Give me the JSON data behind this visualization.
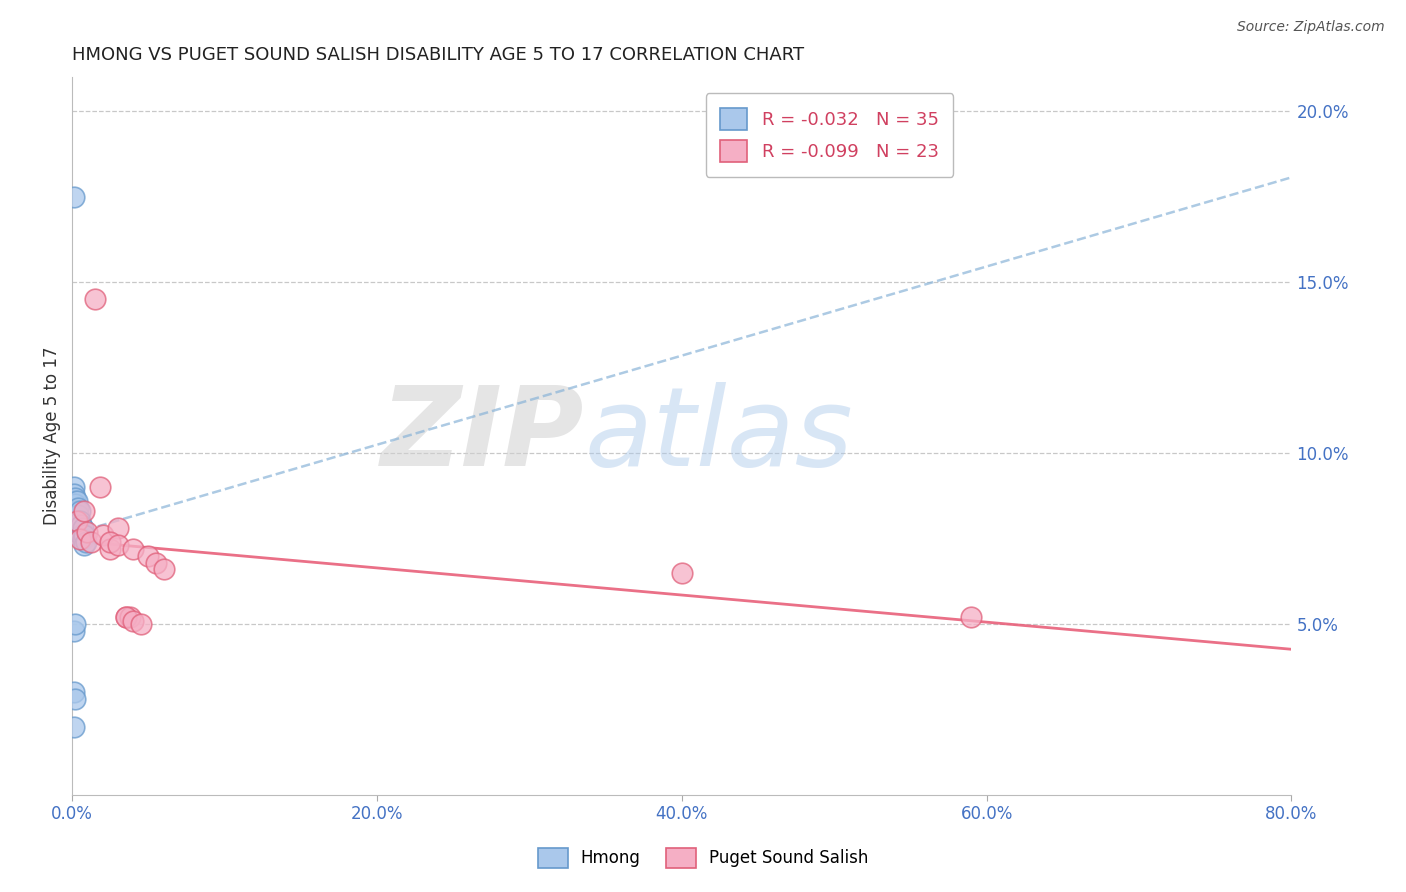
{
  "title": "HMONG VS PUGET SOUND SALISH DISABILITY AGE 5 TO 17 CORRELATION CHART",
  "source": "Source: ZipAtlas.com",
  "ylabel": "Disability Age 5 to 17",
  "r_hmong": -0.032,
  "n_hmong": 35,
  "r_salish": -0.099,
  "n_salish": 23,
  "hmong_color": "#aac8eb",
  "salish_color": "#f5afc5",
  "hmong_edge_color": "#6699cc",
  "salish_edge_color": "#e0607a",
  "hmong_line_color": "#8ab4d8",
  "salish_line_color": "#e8607a",
  "title_color": "#222222",
  "axis_tick_color": "#4472c4",
  "xlim": [
    0.0,
    0.8
  ],
  "ylim": [
    0.0,
    0.21
  ],
  "xticks": [
    0.0,
    0.2,
    0.4,
    0.6,
    0.8
  ],
  "yticks_right": [
    0.05,
    0.1,
    0.15,
    0.2
  ],
  "grid_color": "#c8c8c8",
  "watermark_zip": "ZIP",
  "watermark_atlas": "atlas",
  "hmong_x": [
    0.001,
    0.001,
    0.001,
    0.001,
    0.001,
    0.001,
    0.002,
    0.002,
    0.002,
    0.002,
    0.002,
    0.003,
    0.003,
    0.003,
    0.003,
    0.003,
    0.004,
    0.004,
    0.004,
    0.004,
    0.005,
    0.005,
    0.005,
    0.006,
    0.006,
    0.007,
    0.007,
    0.008,
    0.008,
    0.009,
    0.001,
    0.001,
    0.001,
    0.002,
    0.002
  ],
  "hmong_y": [
    0.175,
    0.09,
    0.088,
    0.086,
    0.083,
    0.08,
    0.087,
    0.085,
    0.083,
    0.08,
    0.078,
    0.086,
    0.083,
    0.081,
    0.079,
    0.076,
    0.084,
    0.082,
    0.079,
    0.077,
    0.083,
    0.08,
    0.077,
    0.079,
    0.076,
    0.078,
    0.075,
    0.076,
    0.073,
    0.074,
    0.048,
    0.03,
    0.02,
    0.05,
    0.028
  ],
  "salish_x": [
    0.003,
    0.005,
    0.008,
    0.01,
    0.012,
    0.015,
    0.018,
    0.02,
    0.025,
    0.03,
    0.025,
    0.03,
    0.035,
    0.038,
    0.04,
    0.05,
    0.055,
    0.06,
    0.4,
    0.59,
    0.035,
    0.04,
    0.045
  ],
  "salish_y": [
    0.08,
    0.075,
    0.083,
    0.077,
    0.074,
    0.145,
    0.09,
    0.076,
    0.072,
    0.078,
    0.074,
    0.073,
    0.052,
    0.052,
    0.072,
    0.07,
    0.068,
    0.066,
    0.065,
    0.052,
    0.052,
    0.051,
    0.05
  ]
}
